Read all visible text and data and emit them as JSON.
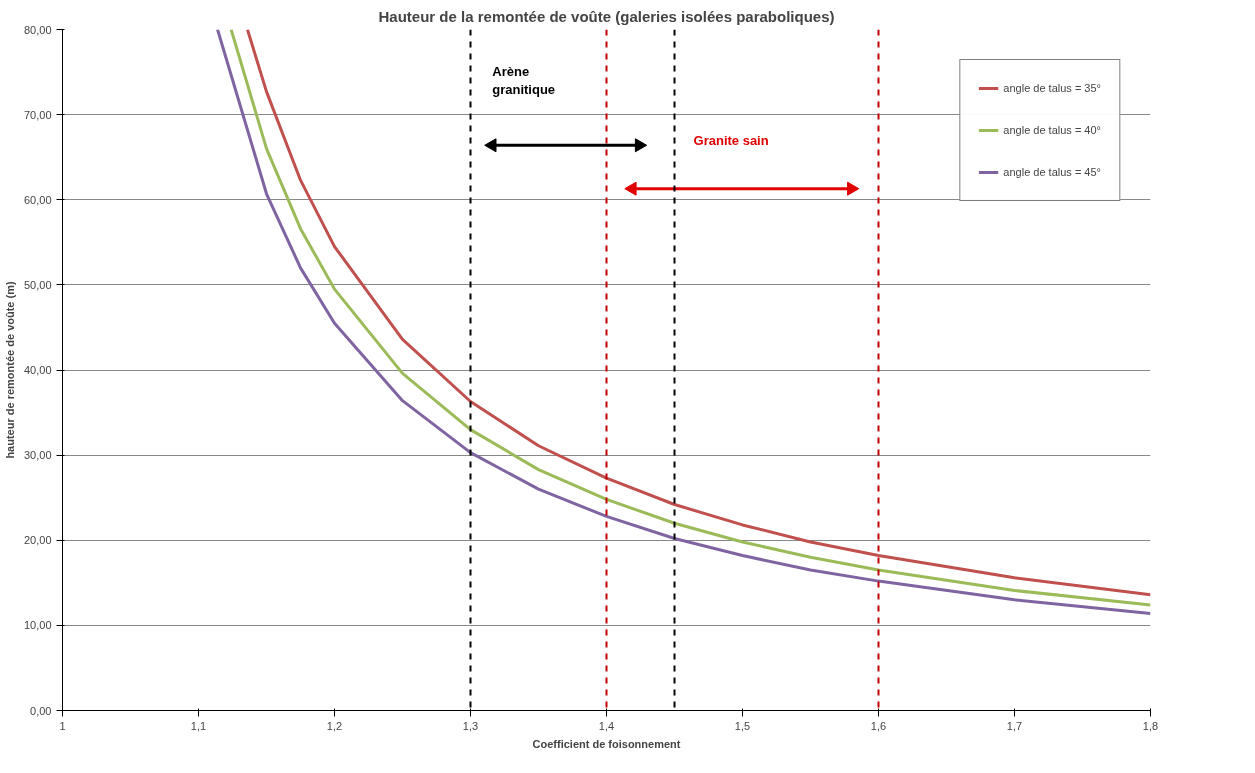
{
  "chart_data": {
    "type": "line",
    "title": "Hauteur de la remontée de voûte (galeries isolées paraboliques)",
    "xlabel": "Coefficient de foisonnement",
    "ylabel": "hauteur de remontée de voûte (m)",
    "xlim": [
      1,
      1.8
    ],
    "ylim": [
      0,
      80
    ],
    "xticks": [
      1,
      {
        "value": 1.1,
        "label": "1,1"
      },
      {
        "value": 1.2,
        "label": "1,2"
      },
      {
        "value": 1.3,
        "label": "1,3"
      },
      {
        "value": 1.4,
        "label": "1,4"
      },
      {
        "value": 1.5,
        "label": "1,5"
      },
      {
        "value": 1.6,
        "label": "1,6"
      },
      {
        "value": 1.7,
        "label": "1,7"
      },
      {
        "value": 1.8,
        "label": "1,8"
      }
    ],
    "yticks": [
      {
        "value": 0,
        "label": "0,00"
      },
      {
        "value": 10,
        "label": "10,00"
      },
      {
        "value": 20,
        "label": "20,00"
      },
      {
        "value": 30,
        "label": "30,00"
      },
      {
        "value": 40,
        "label": "40,00"
      },
      {
        "value": 50,
        "label": "50,00"
      },
      {
        "value": 60,
        "label": "60,00"
      },
      {
        "value": 70,
        "label": "70,00"
      },
      {
        "value": 80,
        "label": "80,00"
      }
    ],
    "grid": "y",
    "legend": "top right",
    "marker": "none",
    "line_style": "solid",
    "series": [
      {
        "name": "angle de talus = 35°",
        "color": "#c0504d",
        "x": [
          1.136,
          1.15,
          1.175,
          1.2,
          1.25,
          1.3,
          1.35,
          1.4,
          1.45,
          1.5,
          1.55,
          1.6,
          1.7,
          1.8
        ],
        "values": [
          80,
          72.7,
          62.3,
          54.5,
          43.6,
          36.3,
          31.1,
          27.3,
          24.2,
          21.8,
          19.8,
          18.2,
          15.6,
          13.6
        ]
      },
      {
        "name": "angle de talus = 40°",
        "color": "#9bbb59",
        "x": [
          1.124,
          1.15,
          1.175,
          1.2,
          1.25,
          1.3,
          1.35,
          1.4,
          1.45,
          1.5,
          1.55,
          1.6,
          1.7,
          1.8
        ],
        "values": [
          80,
          66.0,
          56.6,
          49.5,
          39.6,
          33.0,
          28.3,
          24.8,
          22.0,
          19.8,
          18.0,
          16.5,
          14.1,
          12.4
        ]
      },
      {
        "name": "angle de talus = 45°",
        "color": "#8064a2",
        "x": [
          1.114,
          1.15,
          1.175,
          1.2,
          1.25,
          1.3,
          1.35,
          1.4,
          1.45,
          1.5,
          1.55,
          1.6,
          1.7,
          1.8
        ],
        "values": [
          80,
          60.7,
          52.0,
          45.5,
          36.4,
          30.3,
          26.0,
          22.8,
          20.2,
          18.2,
          16.5,
          15.2,
          13.0,
          11.4
        ]
      },
      {
        "color": "#000000",
        "x": [
          1.316,
          1.424
        ],
        "values": [
          66.4,
          66.4
        ],
        "marker": "triangle"
      },
      {
        "color": "#e00000",
        "x": [
          1.419,
          1.58
        ],
        "values": [
          61.3,
          61.3
        ],
        "marker": "triangle"
      }
    ],
    "ref_lines": [
      {
        "axis": "x",
        "value": 1.3,
        "color": "#000000",
        "line_style": "dashed"
      },
      {
        "axis": "x",
        "value": 1.45,
        "color": "#000000",
        "line_style": "dashed"
      },
      {
        "axis": "x",
        "value": 1.4,
        "color": "#c00000",
        "line_style": "dashed"
      },
      {
        "axis": "x",
        "value": 1.6,
        "color": "#c00000",
        "line_style": "dashed"
      }
    ],
    "annotations": [
      "Arène\ngranitique",
      "Granite sain"
    ]
  }
}
